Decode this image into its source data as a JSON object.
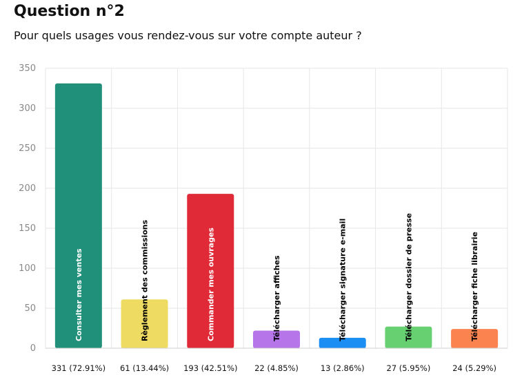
{
  "header": {
    "title": "Question n°2",
    "subtitle": "Pour quels usages vous rendez-vous sur votre compte auteur ?"
  },
  "chart_data": {
    "type": "bar",
    "categories": [
      "Consulter mes ventes",
      "Règlement des commissions",
      "Commander mes ouvrages",
      "Télécharger affiches",
      "Télécharger signature e-mail",
      "Télécharger dossier de presse",
      "Télécharger fiche librairie"
    ],
    "values": [
      331,
      61,
      193,
      22,
      13,
      27,
      24
    ],
    "x_tick_labels": [
      "331 (72.91%)",
      "61 (13.44%)",
      "193 (42.51%)",
      "22 (4.85%)",
      "13 (2.86%)",
      "27 (5.95%)",
      "24 (5.29%)"
    ],
    "colors": [
      "#21907a",
      "#eedb62",
      "#e02a37",
      "#b676ea",
      "#1a8ef3",
      "#67d071",
      "#fb834f"
    ],
    "label_colors": [
      "#ffffff",
      "#000000",
      "#ffffff",
      "#000000",
      "#000000",
      "#000000",
      "#000000"
    ],
    "ylim": [
      0,
      350
    ],
    "yticks": [
      0,
      50,
      100,
      150,
      200,
      250,
      300,
      350
    ],
    "grid": true,
    "xlabel": "",
    "ylabel": ""
  }
}
